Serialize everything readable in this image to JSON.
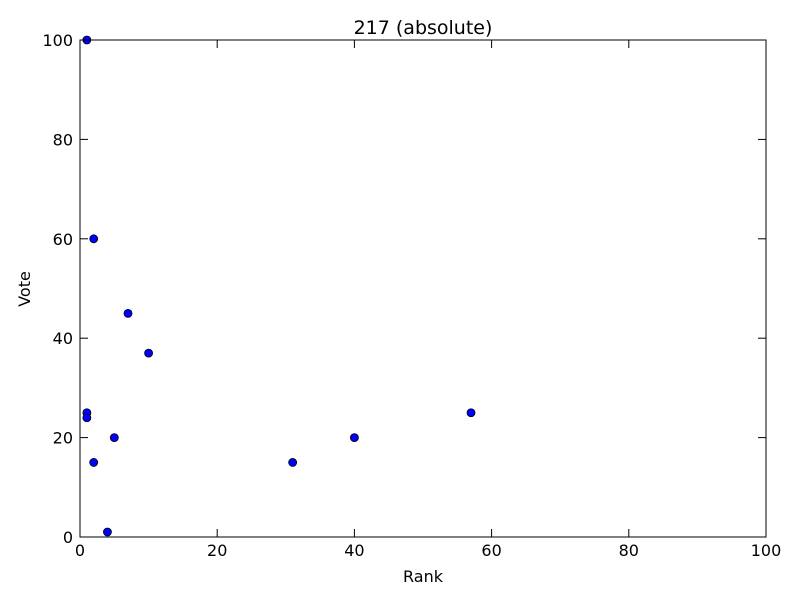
{
  "chart_data": {
    "type": "scatter",
    "title": "217 (absolute)",
    "xlabel": "Rank",
    "ylabel": "Vote",
    "xlim": [
      0,
      100
    ],
    "ylim": [
      0,
      100
    ],
    "x_ticks": [
      "0",
      "20",
      "40",
      "60",
      "80",
      "100"
    ],
    "y_ticks": [
      "0",
      "20",
      "40",
      "60",
      "80",
      "100"
    ],
    "grid": false,
    "legend": "none",
    "marker_color": "#0000ff",
    "marker_edge_color": "#000000",
    "series": [
      {
        "points": [
          {
            "x": 1,
            "y": 100
          },
          {
            "x": 2,
            "y": 60
          },
          {
            "x": 7,
            "y": 45
          },
          {
            "x": 10,
            "y": 37
          },
          {
            "x": 1,
            "y": 25
          },
          {
            "x": 1,
            "y": 24
          },
          {
            "x": 5,
            "y": 20
          },
          {
            "x": 2,
            "y": 15
          },
          {
            "x": 4,
            "y": 1
          },
          {
            "x": 31,
            "y": 15
          },
          {
            "x": 40,
            "y": 20
          },
          {
            "x": 57,
            "y": 25
          }
        ]
      }
    ]
  }
}
